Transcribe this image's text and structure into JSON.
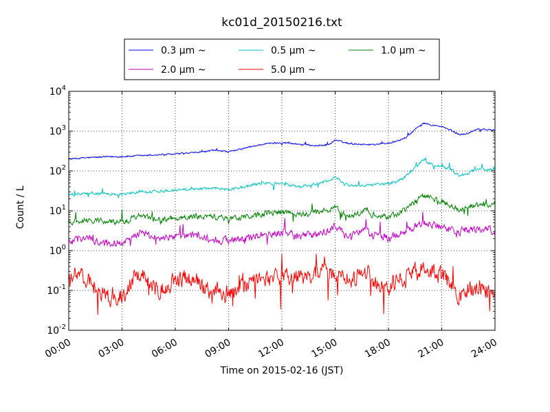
{
  "chart_data": {
    "type": "line",
    "title": "kc01d_20150216.txt",
    "xlabel": "Time on 2015-02-16 (JST)",
    "ylabel": "Count / L",
    "x_unit": "hours",
    "xlim": [
      0,
      24
    ],
    "ylim": [
      0.01,
      10000
    ],
    "yscale": "log",
    "grid": true,
    "legend_position": "top-center-outside",
    "x_tick_labels": [
      "00:00",
      "03:00",
      "06:00",
      "09:00",
      "12:00",
      "15:00",
      "18:00",
      "21:00",
      "24:00"
    ],
    "y_ticks": [
      {
        "base": "10",
        "exp": "-2",
        "value": 0.01
      },
      {
        "base": "10",
        "exp": "-1",
        "value": 0.1
      },
      {
        "base": "10",
        "exp": "0",
        "value": 1
      },
      {
        "base": "10",
        "exp": "1",
        "value": 10
      },
      {
        "base": "10",
        "exp": "2",
        "value": 100
      },
      {
        "base": "10",
        "exp": "3",
        "value": 1000
      },
      {
        "base": "10",
        "exp": "4",
        "value": 10000
      }
    ],
    "series": [
      {
        "name": "0.3 μm ~",
        "color": "#0000ff",
        "noise": 0.015,
        "x": [
          0,
          1,
          2,
          3,
          4,
          5,
          6,
          7,
          8,
          8.5,
          9,
          10,
          11,
          12,
          13,
          14,
          14.7,
          15,
          15.5,
          16,
          17,
          18,
          18.5,
          19,
          19.5,
          20,
          20.5,
          21,
          21.5,
          22,
          22.5,
          23,
          23.5,
          24
        ],
        "values": [
          200,
          215,
          225,
          230,
          240,
          255,
          265,
          285,
          320,
          330,
          300,
          380,
          480,
          520,
          470,
          430,
          470,
          600,
          520,
          480,
          460,
          500,
          560,
          700,
          1100,
          1600,
          1400,
          1300,
          1050,
          830,
          880,
          1150,
          1100,
          1050
        ]
      },
      {
        "name": "0.5 μm ~",
        "color": "#00bfbf",
        "noise": 0.025,
        "x": [
          0,
          1,
          2,
          3,
          4,
          5,
          6,
          7,
          8,
          9,
          10,
          11,
          12,
          13,
          14,
          14.8,
          15,
          15.5,
          16,
          17,
          18,
          18.5,
          19,
          19.5,
          20,
          20.5,
          21,
          21.5,
          22,
          22.5,
          23,
          24
        ],
        "values": [
          25,
          27,
          27,
          26,
          30,
          31,
          33,
          36,
          37,
          35,
          41,
          50,
          48,
          40,
          48,
          60,
          75,
          47,
          43,
          44,
          48,
          55,
          75,
          120,
          190,
          140,
          130,
          110,
          75,
          90,
          115,
          105
        ]
      },
      {
        "name": "1.0 μm ~",
        "color": "#008000",
        "noise": 0.05,
        "x": [
          0,
          1,
          2,
          3,
          4,
          5,
          6,
          7,
          8,
          9,
          10,
          11,
          12,
          13,
          14,
          14.8,
          15,
          15.5,
          16,
          16.8,
          17,
          18,
          18.5,
          19,
          19.5,
          20,
          20.5,
          21,
          21.5,
          22,
          22.5,
          23,
          24
        ],
        "values": [
          5.2,
          6.0,
          5.5,
          5.2,
          7.5,
          6.0,
          6.5,
          7.0,
          7.2,
          6.5,
          7.0,
          8.5,
          9.0,
          8.0,
          9.0,
          11,
          13,
          8.0,
          7.5,
          11,
          8.0,
          7.0,
          8.5,
          11,
          17,
          25,
          20,
          18,
          13,
          11,
          12,
          14,
          14
        ]
      },
      {
        "name": "2.0 μm ~",
        "color": "#bf00bf",
        "noise": 0.07,
        "x": [
          0,
          1,
          2,
          3,
          4,
          5,
          6,
          7,
          8,
          9,
          10,
          11,
          12,
          13,
          14,
          14.8,
          15,
          15.5,
          16,
          16.8,
          17,
          18,
          18.5,
          19,
          19.5,
          20,
          20.5,
          21,
          21.5,
          22,
          22.5,
          23,
          24
        ],
        "values": [
          1.6,
          2.2,
          1.5,
          1.6,
          2.8,
          2.0,
          2.2,
          2.4,
          2.0,
          1.8,
          2.0,
          2.6,
          2.8,
          2.3,
          2.6,
          3.5,
          4.0,
          2.5,
          2.3,
          3.8,
          2.6,
          2.0,
          2.4,
          3.2,
          4.2,
          4.8,
          4.4,
          4.0,
          3.3,
          3.0,
          3.3,
          3.4,
          3.3
        ]
      },
      {
        "name": "5.0 μm ~",
        "color": "#ff0000",
        "noise": 0.16,
        "x": [
          0,
          0.5,
          1,
          1.5,
          2,
          2.5,
          3,
          3.5,
          4,
          4.5,
          5,
          5.5,
          6,
          6.5,
          7,
          7.5,
          8,
          8.5,
          9,
          9.5,
          10,
          11,
          12,
          13,
          14,
          15,
          16,
          16.8,
          17,
          17.5,
          18,
          18.5,
          19,
          19.5,
          20,
          20.5,
          21,
          21.5,
          22,
          22.5,
          23,
          23.5,
          24
        ],
        "values": [
          0.25,
          0.3,
          0.2,
          0.12,
          0.08,
          0.06,
          0.07,
          0.15,
          0.3,
          0.2,
          0.1,
          0.12,
          0.18,
          0.2,
          0.22,
          0.15,
          0.08,
          0.1,
          0.08,
          0.1,
          0.15,
          0.18,
          0.22,
          0.2,
          0.3,
          0.25,
          0.2,
          0.35,
          0.18,
          0.15,
          0.12,
          0.18,
          0.2,
          0.3,
          0.35,
          0.3,
          0.25,
          0.15,
          0.07,
          0.1,
          0.12,
          0.1,
          0.1
        ]
      }
    ]
  }
}
